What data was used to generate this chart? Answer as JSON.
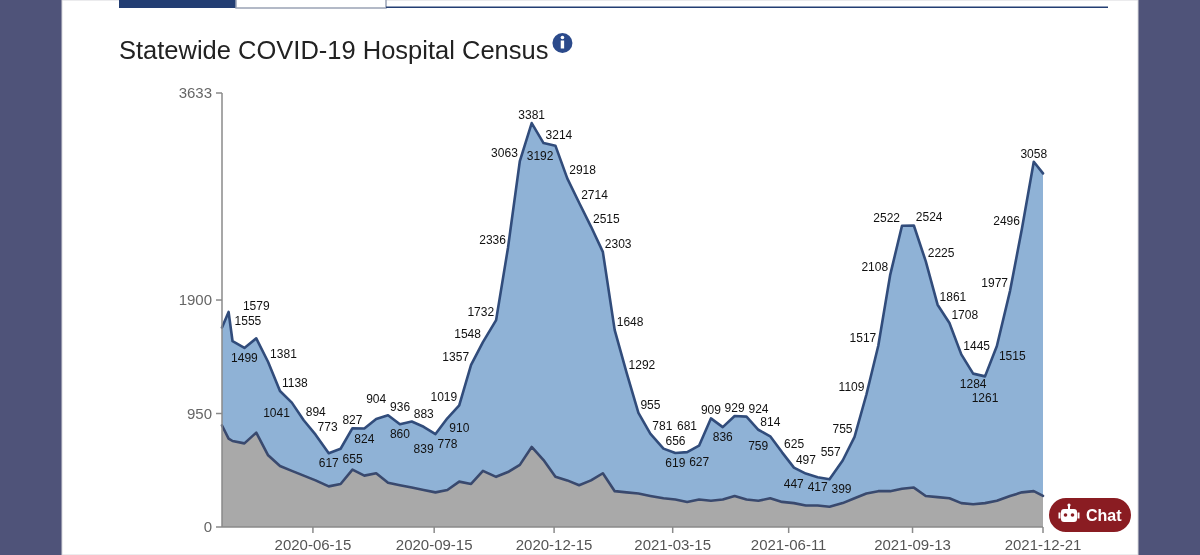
{
  "chart_data": {
    "type": "area",
    "title": "Statewide COVID-19 Hospital Census",
    "x": [
      "2020-04-07",
      "2020-04-12",
      "2020-04-15",
      "2020-04-24",
      "2020-05-03",
      "2020-05-12",
      "2020-05-21",
      "2020-05-30",
      "2020-06-08",
      "2020-06-17",
      "2020-06-27",
      "2020-07-06",
      "2020-07-15",
      "2020-07-24",
      "2020-08-02",
      "2020-08-11",
      "2020-08-20",
      "2020-08-29",
      "2020-09-07",
      "2020-09-16",
      "2020-09-25",
      "2020-10-04",
      "2020-10-13",
      "2020-10-22",
      "2020-11-01",
      "2020-11-10",
      "2020-11-19",
      "2020-11-28",
      "2020-12-07",
      "2020-12-16",
      "2020-12-25",
      "2021-01-03",
      "2021-01-12",
      "2021-01-21",
      "2021-01-30",
      "2021-02-08",
      "2021-02-17",
      "2021-02-26",
      "2021-03-08",
      "2021-03-17",
      "2021-03-26",
      "2021-04-04",
      "2021-04-13",
      "2021-04-22",
      "2021-05-01",
      "2021-05-10",
      "2021-05-19",
      "2021-05-28",
      "2021-06-06",
      "2021-06-15",
      "2021-06-24",
      "2021-07-03",
      "2021-07-12",
      "2021-07-22",
      "2021-07-31",
      "2021-08-09",
      "2021-08-18",
      "2021-08-27",
      "2021-09-05",
      "2021-09-14",
      "2021-09-23",
      "2021-10-02",
      "2021-10-11",
      "2021-10-20",
      "2021-10-29",
      "2021-11-07",
      "2021-11-16",
      "2021-11-26",
      "2021-12-05",
      "2021-12-14",
      "2021-12-21"
    ],
    "xlim": [
      "2020-04-07",
      "2021-12-21"
    ],
    "xticks": [
      "2020-06-15",
      "2020-09-15",
      "2020-12-15",
      "2021-03-15",
      "2021-06-11",
      "2021-09-13",
      "2021-12-21"
    ],
    "ylim": [
      0,
      3633
    ],
    "yticks": [
      0,
      950,
      1900,
      3633
    ],
    "series": [
      {
        "color": "#8fb2d6",
        "values": [
          1670,
          1800,
          1555,
          1499,
          1579,
          1381,
          1138,
          1041,
          894,
          773,
          617,
          655,
          827,
          824,
          904,
          936,
          860,
          883,
          839,
          778,
          910,
          1019,
          1357,
          1548,
          1732,
          2336,
          3063,
          3381,
          3214,
          3192,
          2918,
          2714,
          2515,
          2303,
          1648,
          1292,
          955,
          781,
          656,
          619,
          627,
          681,
          909,
          836,
          929,
          924,
          814,
          759,
          625,
          497,
          447,
          417,
          399,
          557,
          755,
          1109,
          1517,
          2108,
          2522,
          2524,
          2225,
          1861,
          1708,
          1445,
          1284,
          1261,
          1515,
          1977,
          2496,
          3058,
          2960
        ],
        "value_labels": [
          null,
          null,
          "1555",
          "1499",
          "1579",
          "1381",
          "1138",
          "1041",
          "894",
          "773",
          "617",
          "655",
          "827",
          "824",
          "904",
          "936",
          "860",
          "883",
          "839",
          "778",
          "910",
          "1019",
          "1357",
          "1548",
          "1732",
          "2336",
          "3063",
          "3381",
          "3214",
          "3192",
          "2918",
          "2714",
          "2515",
          "2303",
          "1648",
          "1292",
          "955",
          "781",
          "656",
          "619",
          "627",
          "681",
          "909",
          "836",
          "929",
          "924",
          "814",
          "759",
          "625",
          "497",
          "447",
          "417",
          "399",
          "557",
          "755",
          "1109",
          "1517",
          "2108",
          "2522",
          "2524",
          "2225",
          "1861",
          "1708",
          "1445",
          "1284",
          "1261",
          "1515",
          "1977",
          "2496",
          "3058",
          null
        ]
      },
      {
        "color": "#a9a9a9",
        "values": [
          850,
          740,
          720,
          700,
          790,
          600,
          510,
          470,
          430,
          390,
          340,
          360,
          480,
          430,
          450,
          370,
          350,
          330,
          310,
          290,
          310,
          380,
          360,
          470,
          420,
          460,
          520,
          670,
          560,
          420,
          390,
          350,
          390,
          450,
          300,
          290,
          280,
          260,
          240,
          230,
          210,
          230,
          220,
          230,
          260,
          230,
          220,
          240,
          210,
          200,
          180,
          180,
          170,
          200,
          240,
          280,
          300,
          300,
          320,
          330,
          260,
          250,
          240,
          200,
          190,
          200,
          220,
          260,
          290,
          300,
          260
        ]
      }
    ],
    "annotations": [
      "Chat"
    ]
  }
}
